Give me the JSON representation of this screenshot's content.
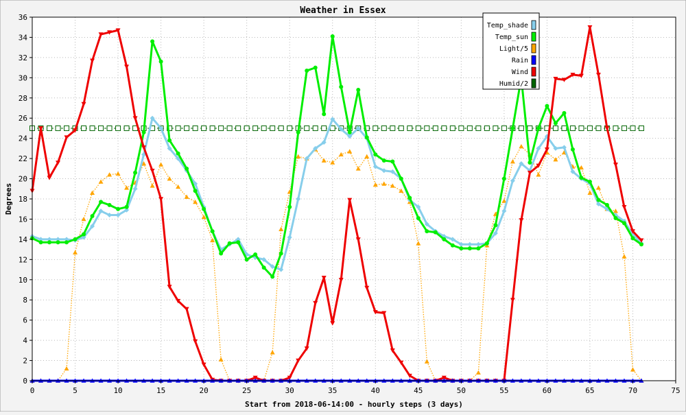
{
  "chart_data": {
    "type": "line",
    "title": "Weather in Essex",
    "xlabel": "Start from 2018-06-14:00 - hourly steps (3 days)",
    "ylabel": "Degrees",
    "xlim": [
      0,
      75
    ],
    "ylim": [
      0,
      36
    ],
    "x_ticks": [
      0,
      5,
      10,
      15,
      20,
      25,
      30,
      35,
      40,
      45,
      50,
      55,
      60,
      65,
      70,
      75
    ],
    "y_ticks": [
      0,
      2,
      4,
      6,
      8,
      10,
      12,
      14,
      16,
      18,
      20,
      22,
      24,
      26,
      28,
      30,
      32,
      34,
      36
    ],
    "grid": true,
    "legend_position": "top-right",
    "x": [
      0,
      1,
      2,
      3,
      4,
      5,
      6,
      7,
      8,
      9,
      10,
      11,
      12,
      13,
      14,
      15,
      16,
      17,
      18,
      19,
      20,
      21,
      22,
      23,
      24,
      25,
      26,
      27,
      28,
      29,
      30,
      31,
      32,
      33,
      34,
      35,
      36,
      37,
      38,
      39,
      40,
      41,
      42,
      43,
      44,
      45,
      46,
      47,
      48,
      49,
      50,
      51,
      52,
      53,
      54,
      55,
      56,
      57,
      58,
      59,
      60,
      61,
      62,
      63,
      64,
      65,
      66,
      67,
      68,
      69,
      70,
      71
    ],
    "series": [
      {
        "name": "Temp_shade",
        "color": "#87ceeb",
        "marker": "diamond",
        "line": "solid",
        "values": [
          14.3,
          14.0,
          14.0,
          14.0,
          14.0,
          13.9,
          14.2,
          15.3,
          16.8,
          16.4,
          16.4,
          16.9,
          19.0,
          22.4,
          26.0,
          25.0,
          23.0,
          22.0,
          20.8,
          19.5,
          17.2,
          14.8,
          13.0,
          13.5,
          14.0,
          12.5,
          12.2,
          12.0,
          11.3,
          11.0,
          14.2,
          18.0,
          22.0,
          23.0,
          23.6,
          25.9,
          24.9,
          24.2,
          25.0,
          24.0,
          21.2,
          20.8,
          20.7,
          20.0,
          17.9,
          17.2,
          15.5,
          14.8,
          14.3,
          14.0,
          13.5,
          13.5,
          13.5,
          13.6,
          14.6,
          16.8,
          19.8,
          21.5,
          20.8,
          23.0,
          24.2,
          23.0,
          23.1,
          20.7,
          20.0,
          19.5,
          17.5,
          17.0,
          16.4,
          15.8,
          14.5,
          13.6
        ]
      },
      {
        "name": "Temp_sun",
        "color": "#00ee00",
        "marker": "circle",
        "line": "solid",
        "values": [
          14.1,
          13.7,
          13.7,
          13.7,
          13.7,
          14.0,
          14.5,
          16.3,
          17.7,
          17.4,
          17.0,
          17.2,
          20.6,
          24.6,
          33.6,
          31.6,
          23.8,
          22.5,
          21.0,
          18.8,
          17.0,
          14.8,
          12.6,
          13.6,
          13.7,
          12.0,
          12.5,
          11.2,
          10.3,
          12.6,
          17.2,
          24.6,
          30.7,
          31.0,
          26.4,
          34.1,
          29.1,
          24.6,
          28.8,
          24.1,
          22.4,
          21.8,
          21.7,
          20.0,
          18.1,
          16.1,
          14.8,
          14.7,
          14.0,
          13.4,
          13.1,
          13.1,
          13.1,
          13.6,
          15.4,
          20.0,
          25.0,
          30.0,
          21.6,
          25.0,
          27.2,
          25.5,
          26.5,
          22.9,
          20.1,
          19.7,
          17.9,
          17.4,
          16.1,
          15.6,
          14.1,
          13.5
        ]
      },
      {
        "name": "Light/5",
        "color": "#ffa500",
        "marker": "triangle-up",
        "line": "dotted",
        "values": [
          0,
          0,
          0,
          0,
          1.2,
          12.7,
          16.0,
          18.6,
          19.7,
          20.4,
          20.5,
          19.1,
          19.6,
          21.5,
          19.3,
          21.4,
          20.0,
          19.2,
          18.2,
          17.7,
          16.2,
          13.9,
          2.1,
          0,
          0,
          0,
          0,
          0,
          2.8,
          15.0,
          18.7,
          22.2,
          22.0,
          22.9,
          21.8,
          21.6,
          22.4,
          22.7,
          21.0,
          22.2,
          19.4,
          19.5,
          19.3,
          18.8,
          17.7,
          13.6,
          1.9,
          0,
          0,
          0,
          0,
          0,
          0.8,
          13.4,
          16.5,
          17.8,
          21.7,
          23.2,
          22.4,
          20.4,
          22.6,
          21.9,
          22.6,
          21.2,
          21.1,
          18.6,
          19.1,
          17.0,
          16.8,
          12.3,
          1.1,
          0
        ]
      },
      {
        "name": "Rain",
        "color": "#0000ff",
        "marker": "triangle-up",
        "line": "solid",
        "values": [
          0,
          0,
          0,
          0,
          0,
          0,
          0,
          0,
          0,
          0,
          0,
          0,
          0,
          0,
          0,
          0,
          0,
          0,
          0,
          0,
          0,
          0,
          0,
          0,
          0,
          0,
          0,
          0,
          0,
          0,
          0,
          0,
          0,
          0,
          0,
          0,
          0,
          0,
          0,
          0,
          0,
          0,
          0,
          0,
          0,
          0,
          0,
          0,
          0,
          0,
          0,
          0,
          0,
          0,
          0,
          0,
          0,
          0,
          0,
          0,
          0,
          0,
          0,
          0,
          0,
          0,
          0,
          0,
          0,
          0,
          0,
          0
        ]
      },
      {
        "name": "Wind",
        "color": "#ee0000",
        "marker": "triangle-down",
        "line": "solid",
        "values": [
          18.8,
          25.0,
          20.1,
          21.6,
          24.1,
          24.8,
          27.4,
          31.7,
          34.3,
          34.5,
          34.7,
          31.1,
          26.0,
          23.1,
          20.8,
          18.0,
          9.3,
          7.9,
          7.1,
          3.9,
          1.6,
          0.1,
          0,
          0,
          0,
          0,
          0.3,
          0,
          0,
          0,
          0.3,
          2.0,
          3.2,
          7.7,
          10.2,
          5.7,
          10.0,
          17.9,
          14.0,
          9.2,
          6.8,
          6.7,
          3.0,
          1.8,
          0.5,
          0,
          0,
          0,
          0.3,
          0,
          0,
          0,
          0,
          0,
          0,
          0,
          8.0,
          15.9,
          20.6,
          21.3,
          22.9,
          29.9,
          29.8,
          30.3,
          30.2,
          35.0,
          30.3,
          25.0,
          21.4,
          17.2,
          14.8,
          13.9
        ]
      },
      {
        "name": "Humid/2",
        "color": "#006400",
        "marker": "square",
        "line": "dashed",
        "values": [
          25,
          25,
          25,
          25,
          25,
          25,
          25,
          25,
          25,
          25,
          25,
          25,
          25,
          25,
          25,
          25,
          25,
          25,
          25,
          25,
          25,
          25,
          25,
          25,
          25,
          25,
          25,
          25,
          25,
          25,
          25,
          25,
          25,
          25,
          25,
          25,
          25,
          25,
          25,
          25,
          25,
          25,
          25,
          25,
          25,
          25,
          25,
          25,
          25,
          25,
          25,
          25,
          25,
          25,
          25,
          25,
          25,
          25,
          25,
          25,
          25,
          25,
          25,
          25,
          25,
          25,
          25,
          25,
          25,
          25,
          25,
          25
        ]
      }
    ]
  }
}
